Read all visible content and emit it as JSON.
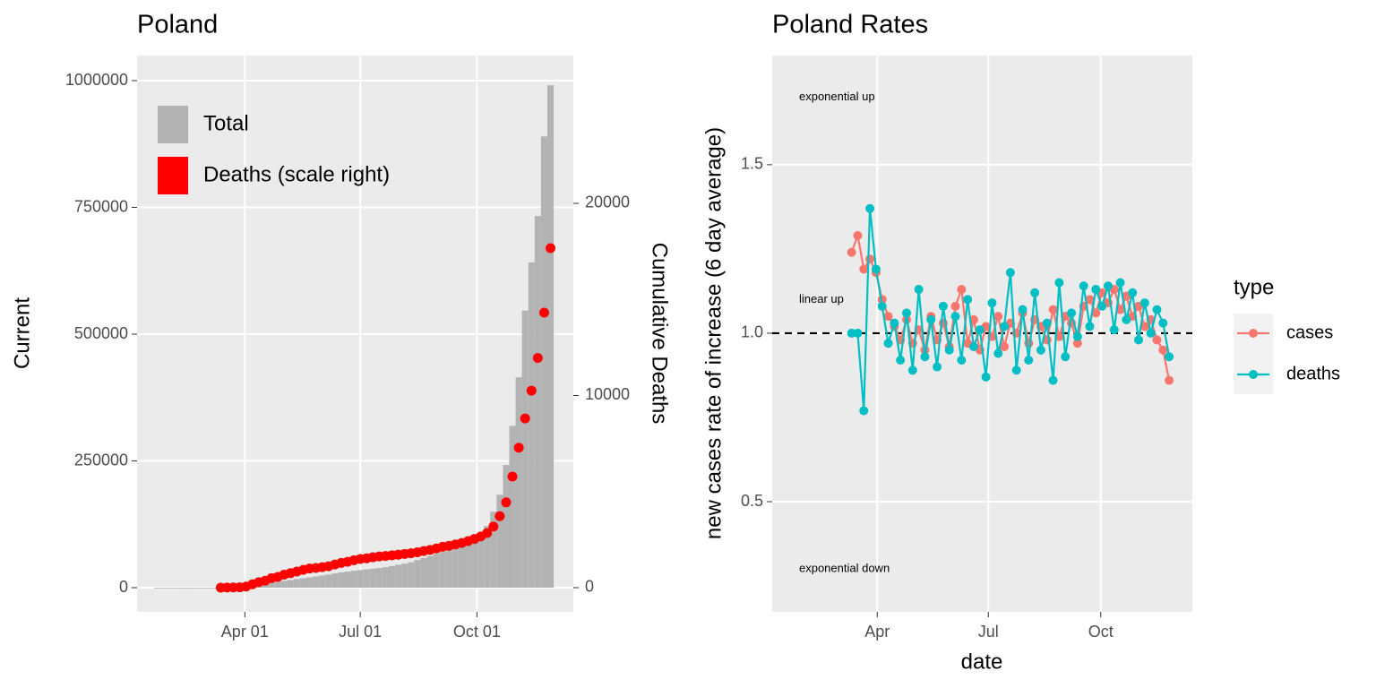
{
  "chart_data": [
    {
      "type": "bar",
      "title": "Poland",
      "y_label": "Current",
      "y2_label": "Cumulative Deaths",
      "x": [
        "Jan 23",
        "Jan 28",
        "Feb 02",
        "Feb 07",
        "Feb 12",
        "Feb 17",
        "Feb 22",
        "Feb 27",
        "Mar 03",
        "Mar 08",
        "Mar 13",
        "Mar 18",
        "Mar 23",
        "Mar 28",
        "Apr 02",
        "Apr 07",
        "Apr 12",
        "Apr 17",
        "Apr 22",
        "Apr 27",
        "May 02",
        "May 07",
        "May 12",
        "May 17",
        "May 22",
        "May 27",
        "Jun 01",
        "Jun 06",
        "Jun 11",
        "Jun 16",
        "Jun 21",
        "Jun 26",
        "Jul 01",
        "Jul 06",
        "Jul 11",
        "Jul 16",
        "Jul 21",
        "Jul 26",
        "Jul 31",
        "Aug 05",
        "Aug 10",
        "Aug 15",
        "Aug 20",
        "Aug 25",
        "Aug 30",
        "Sep 04",
        "Sep 09",
        "Sep 14",
        "Sep 19",
        "Sep 24",
        "Sep 29",
        "Oct 04",
        "Oct 09",
        "Oct 14",
        "Oct 19",
        "Oct 24",
        "Oct 29",
        "Nov 03",
        "Nov 08",
        "Nov 13",
        "Nov 18",
        "Nov 23",
        "Nov 28"
      ],
      "series": [
        {
          "name": "Total",
          "type": "bar",
          "color": "#B3B3B3",
          "values": [
            0,
            0,
            0,
            0,
            0,
            0,
            0,
            0,
            0,
            11,
            68,
            287,
            749,
            1638,
            2946,
            4848,
            6674,
            8379,
            10169,
            11902,
            13375,
            15047,
            16921,
            18529,
            20143,
            22074,
            23987,
            25986,
            28201,
            30195,
            31620,
            33395,
            34775,
            36155,
            37521,
            38721,
            40383,
            42622,
            45031,
            47469,
            50324,
            54487,
            58611,
            62310,
            66947,
            70387,
            73886,
            77873,
            82809,
            88636,
            93481,
            102080,
            121638,
            149903,
            183248,
            241946,
            319205,
            414844,
            546425,
            641496,
            733064,
            890000,
            990811
          ]
        },
        {
          "name": "Deaths (scale right)",
          "type": "point",
          "color": "#FF0000",
          "axis": "y2",
          "values": [
            null,
            null,
            null,
            null,
            null,
            null,
            null,
            null,
            null,
            null,
            2,
            5,
            10,
            18,
            57,
            174,
            286,
            360,
            494,
            562,
            678,
            755,
            839,
            925,
            996,
            1024,
            1064,
            1115,
            1206,
            1286,
            1346,
            1429,
            1492,
            1528,
            1582,
            1624,
            1651,
            1682,
            1716,
            1756,
            1787,
            1844,
            1908,
            1965,
            2039,
            2126,
            2181,
            2248,
            2323,
            2424,
            2532,
            2662,
            2846,
            3180,
            3719,
            4438,
            5783,
            7287,
            8805,
            10253,
            11951,
            14314,
            17670
          ]
        }
      ],
      "xlim": [
        "Jan 07",
        "Dec 16"
      ],
      "xticks": [
        "Apr 01",
        "Jul 01",
        "Oct 01"
      ],
      "ylim": [
        -47700,
        1049470
      ],
      "yticks": [
        0,
        250000,
        500000,
        750000,
        1000000
      ],
      "y2lim": [
        -1259,
        27692
      ],
      "y2ticks": [
        0,
        10000,
        20000
      ],
      "grid": true,
      "legend": "top-left"
    },
    {
      "type": "line",
      "title": "Poland Rates",
      "x_label": "date",
      "y_label": "new cases rate of increase (6 day average)",
      "legend_title": "type",
      "legend": "right",
      "grid": true,
      "hline": 1,
      "annotations": [
        {
          "text": "exponential up",
          "x": 28,
          "y": 1.7
        },
        {
          "text": "linear up",
          "x": 28,
          "y": 1.1
        },
        {
          "text": "exponential down",
          "x": 28,
          "y": 0.3
        }
      ],
      "x": [
        71,
        76,
        81,
        86,
        91,
        96,
        101,
        106,
        111,
        116,
        121,
        126,
        131,
        136,
        141,
        146,
        151,
        156,
        161,
        166,
        171,
        176,
        181,
        186,
        191,
        196,
        201,
        206,
        211,
        216,
        221,
        226,
        231,
        236,
        241,
        246,
        251,
        256,
        261,
        266,
        271,
        276,
        281,
        286,
        291,
        296,
        301,
        306,
        311,
        316,
        321,
        326,
        331
      ],
      "series": [
        {
          "name": "cases",
          "color": "#F8766D",
          "values": [
            1.24,
            1.29,
            1.19,
            1.22,
            1.18,
            1.1,
            1.05,
            1.02,
            0.98,
            1.04,
            0.97,
            1.01,
            0.95,
            1.05,
            0.98,
            1.03,
            0.96,
            1.08,
            1.13,
            0.97,
            1.04,
            0.95,
            1.02,
            0.99,
            1.05,
            0.96,
            1.03,
            1.0,
            1.06,
            0.97,
            1.04,
            1.02,
            0.98,
            1.07,
            0.99,
            1.05,
            1.03,
            0.97,
            1.08,
            1.1,
            1.06,
            1.12,
            1.09,
            1.13,
            1.07,
            1.11,
            1.05,
            1.08,
            1.02,
            1.04,
            0.98,
            0.95,
            0.86
          ]
        },
        {
          "name": "deaths",
          "color": "#00BFC4",
          "values": [
            1.0,
            1.0,
            0.77,
            1.37,
            1.19,
            1.08,
            0.97,
            1.03,
            0.92,
            1.06,
            0.89,
            1.13,
            0.93,
            1.04,
            0.9,
            1.08,
            0.95,
            1.05,
            0.92,
            1.1,
            0.96,
            1.01,
            0.87,
            1.09,
            0.94,
            1.02,
            1.18,
            0.89,
            1.07,
            0.92,
            1.12,
            0.95,
            1.03,
            0.86,
            1.15,
            0.93,
            1.06,
            0.99,
            1.14,
            1.02,
            1.13,
            1.08,
            1.14,
            1.01,
            1.15,
            1.04,
            1.12,
            0.98,
            1.09,
            1.0,
            1.07,
            1.03,
            0.93
          ]
        }
      ],
      "xlim": [
        6,
        350
      ],
      "xticks": [
        {
          "value": 92,
          "label": "Apr"
        },
        {
          "value": 183,
          "label": "Jul"
        },
        {
          "value": 275,
          "label": "Oct"
        }
      ],
      "ylim": [
        0.173,
        1.824
      ],
      "yticks": [
        0.5,
        {
          "value": 1,
          "label": "1.0"
        },
        1.5
      ]
    }
  ]
}
